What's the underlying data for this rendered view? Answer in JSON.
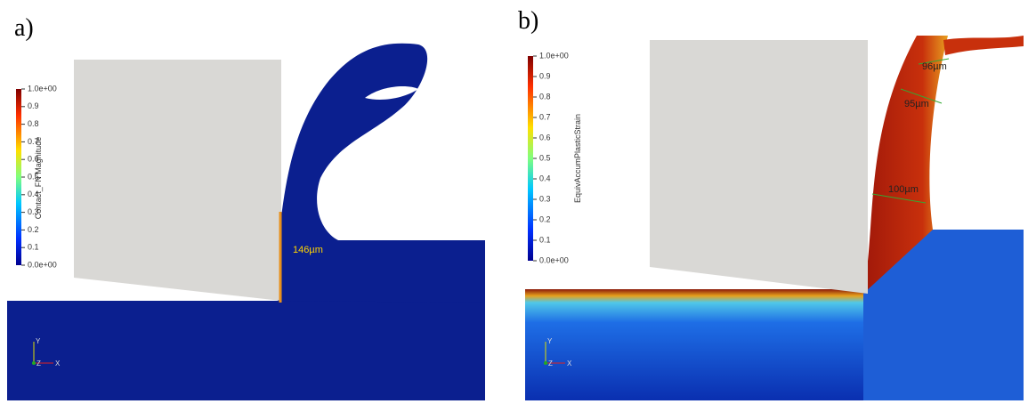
{
  "panels": [
    {
      "label": "a)",
      "colorbar": {
        "title": "Contact_FN Magnitude",
        "ticks": [
          "1.0e+00",
          "0.9",
          "0.8",
          "0.7",
          "0.6",
          "0.5",
          "0.4",
          "0.3",
          "0.2",
          "0.1",
          "0.0e+00"
        ]
      },
      "annotations": [
        "146µm"
      ],
      "axes": [
        "Y",
        "Z",
        "X"
      ]
    },
    {
      "label": "b)",
      "colorbar": {
        "title": "EquivAccumPlasticStrain",
        "ticks": [
          "1.0e+00",
          "0.9",
          "0.8",
          "0.7",
          "0.6",
          "0.5",
          "0.4",
          "0.3",
          "0.2",
          "0.1",
          "0.0e+00"
        ]
      },
      "annotations": [
        "96µm",
        "95µm",
        "100µm"
      ],
      "axes": [
        "Y",
        "Z",
        "X"
      ]
    }
  ]
}
